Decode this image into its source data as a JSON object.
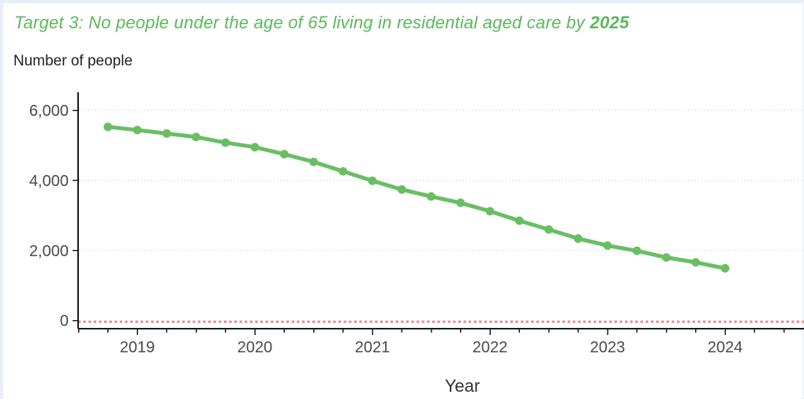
{
  "title": {
    "regular": "Target 3: No people under the age of 65 living in residential aged care by ",
    "bold": "2025"
  },
  "colors": {
    "title_green": "#5cb85c",
    "line_green": "#69be64",
    "target_red": "#e58c8c",
    "gridline": "#e5e5e5",
    "axis": "#1a1a1a",
    "tick_label": "#4a4a4a"
  },
  "chart_data": {
    "type": "line",
    "title": "Target 3: No people under the age of 65 living in residential aged care by 2025",
    "xlabel": "Year",
    "ylabel": "Number of people",
    "x_tick_labels": [
      "2019",
      "2020",
      "2021",
      "2022",
      "2023",
      "2024"
    ],
    "y_tick_labels": [
      "0",
      "2,000",
      "4,000",
      "6,000"
    ],
    "y_ticks": [
      0,
      2000,
      4000,
      6000
    ],
    "ylim": [
      0,
      6600
    ],
    "xlim": [
      2018.5,
      2024.7
    ],
    "grid": "horizontal-dotted",
    "legend": "none",
    "target_line": {
      "value": 0,
      "style": "dotted"
    },
    "series": [
      {
        "x": [
          2018.75,
          2019.0,
          2019.25,
          2019.5,
          2019.75,
          2020.0,
          2020.25,
          2020.5,
          2020.75,
          2021.0,
          2021.25,
          2021.5,
          2021.75,
          2022.0,
          2022.25,
          2022.5,
          2022.75,
          2023.0,
          2023.25,
          2023.5,
          2023.75,
          2024.0
        ],
        "values": [
          5530,
          5440,
          5340,
          5240,
          5080,
          4950,
          4750,
          4530,
          4260,
          3990,
          3740,
          3540,
          3360,
          3120,
          2850,
          2600,
          2340,
          2140,
          1990,
          1800,
          1660,
          1490
        ]
      }
    ]
  }
}
